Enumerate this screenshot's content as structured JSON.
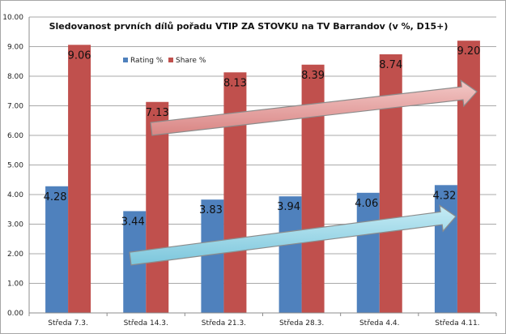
{
  "chart_data": {
    "type": "bar",
    "title": "Sledovanost prvních dílů pořadu VTIP ZA STOVKU na TV Barrandov (v %, D15+)",
    "xlabel": "",
    "ylabel": "",
    "ylim": [
      0,
      10
    ],
    "ytick_step": 1,
    "yticks": [
      "0.00",
      "1.00",
      "2.00",
      "3.00",
      "4.00",
      "5.00",
      "6.00",
      "7.00",
      "8.00",
      "9.00",
      "10.00"
    ],
    "grid": true,
    "legend_position": "top-left",
    "categories": [
      "Středa 7.3.",
      "Středa 14.3.",
      "Středa 21.3.",
      "Středa 28.3.",
      "Středa 4.4.",
      "Středa 4.11."
    ],
    "series": [
      {
        "name": "Rating %",
        "color": "#4f81bd",
        "values": [
          4.28,
          3.44,
          3.83,
          3.94,
          4.06,
          4.32
        ],
        "labels": [
          "4.28",
          "3.44",
          "3.83",
          "3.94",
          "4.06",
          "4.32"
        ]
      },
      {
        "name": "Share %",
        "color": "#c0504d",
        "values": [
          9.06,
          7.13,
          8.13,
          8.39,
          8.74,
          9.2
        ],
        "labels": [
          "9.06",
          "7.13",
          "8.13",
          "8.39",
          "8.74",
          "9.20"
        ]
      }
    ],
    "annotations": [
      {
        "kind": "trend-arrow",
        "color": "#e6a3a3",
        "series": "Share %"
      },
      {
        "kind": "trend-arrow",
        "color": "#9fd8e8",
        "series": "Rating %"
      }
    ]
  }
}
